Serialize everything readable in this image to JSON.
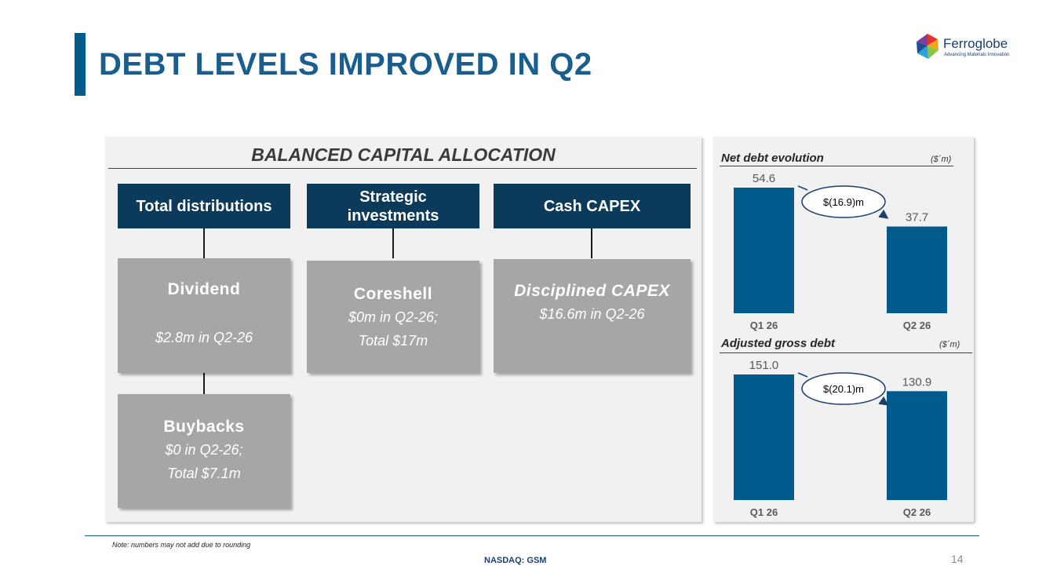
{
  "header": {
    "title": "DEBT LEVELS IMPROVED IN Q2",
    "logo_name": "Ferroglobe",
    "logo_tagline": "Advancing Materials Innovation"
  },
  "allocation": {
    "heading": "BALANCED CAPITAL ALLOCATION",
    "categories": [
      {
        "label": "Total distributions"
      },
      {
        "label": "Strategic investments"
      },
      {
        "label": "Cash CAPEX"
      }
    ],
    "items": {
      "dividend": {
        "title": "Dividend",
        "sub": "$2.8m in Q2-26"
      },
      "buybacks": {
        "title": "Buybacks",
        "sub1": "$0 in Q2-26;",
        "sub2": "Total $7.1m"
      },
      "coreshell": {
        "title": "Coreshell",
        "sub1": "$0m in Q2-26;",
        "sub2": "Total $17m"
      },
      "capex": {
        "title": "Disciplined CAPEX",
        "sub": "$16.6m in Q2-26"
      }
    }
  },
  "chart_data": [
    {
      "type": "bar",
      "title": "Net debt evolution",
      "unit": "($´m)",
      "categories": [
        "Q1 26",
        "Q2 26"
      ],
      "values": [
        54.6,
        37.7
      ],
      "value_labels": [
        "54.6",
        "37.7"
      ],
      "change_label": "$(16.9)m"
    },
    {
      "type": "bar",
      "title": "Adjusted gross debt",
      "unit": "($´m)",
      "categories": [
        "Q1 26",
        "Q2 26"
      ],
      "values": [
        151.0,
        130.9
      ],
      "value_labels": [
        "151.0",
        "130.9"
      ],
      "change_label": "$(20.1)m"
    }
  ],
  "colors": {
    "accent": "#005a8b",
    "category_box": "#0c3a5b",
    "item_box": "#a6a6a6",
    "bar": "#005a8b",
    "panel": "#f1f1f1"
  },
  "footer": {
    "note": "Note: numbers may not add due to rounding",
    "ticker": "NASDAQ: GSM",
    "page": "14"
  }
}
